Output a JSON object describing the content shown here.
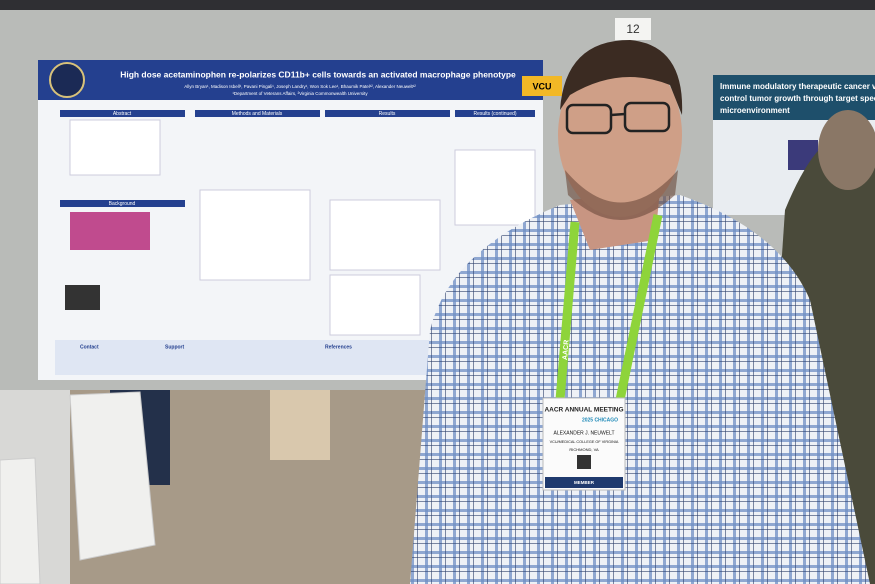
{
  "board_number": "12",
  "poster": {
    "title": "High dose acetaminophen re-polarizes CD11b+ cells towards an activated macrophage phenotype",
    "authors": "Allyn Bryan¹, Madison Isbell¹, Pavani Pingali¹, Joseph Landry¹, Won Sok Lee¹, Bhaumik Patel¹², Alexander Neuwelt¹²",
    "affiliations": "¹Department of Veterans Affairs, ²Virginia Commonwealth University",
    "logo": "VCU",
    "sections": [
      "Abstract",
      "Methods and Materials",
      "Results",
      "Results (continued)",
      "Background",
      "Contact",
      "Support",
      "References"
    ]
  },
  "side_poster": {
    "title_lines": [
      "Immune modulatory therapeutic cancer vac",
      "control tumor growth through target spec",
      "microenvironment"
    ]
  },
  "lanyard": "AACR",
  "badge": {
    "meeting": "AACR ANNUAL MEETING",
    "year_city": "2025 CHICAGO",
    "name": "ALEXANDER J. NEUWELT",
    "institution": "VCU/MEDICAL COLLEGE OF VIRGINIA",
    "location": "RICHMOND, VA",
    "type": "MEMBER"
  }
}
